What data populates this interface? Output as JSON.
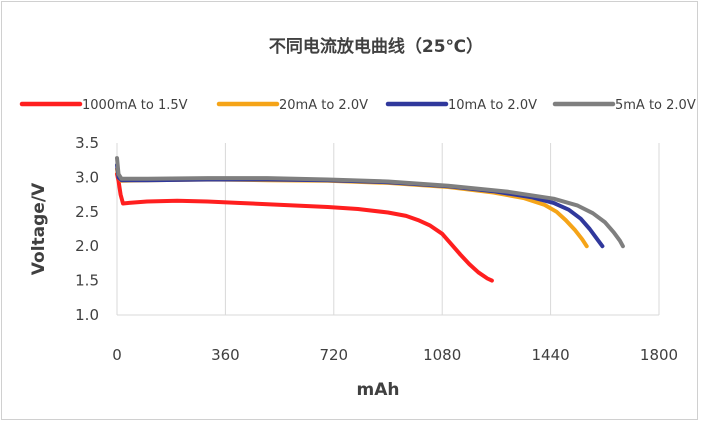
{
  "chart_data": {
    "type": "line",
    "title": "不同电流放电曲线（25℃）",
    "xlabel": "mAh",
    "ylabel": "Voltage/V",
    "xlim": [
      0,
      1800
    ],
    "ylim": [
      1.0,
      3.5
    ],
    "xticks": [
      "0",
      "360",
      "720",
      "1080",
      "1440",
      "1800"
    ],
    "yticks": [
      "1.0",
      "1.5",
      "2.0",
      "2.5",
      "3.0",
      "3.5"
    ],
    "grid": "vertical",
    "legend_position": "top",
    "series": [
      {
        "name": "1000mA to 1.5V",
        "color": "#ff1f1f",
        "points": [
          [
            0,
            3.05
          ],
          [
            5,
            2.95
          ],
          [
            12,
            2.75
          ],
          [
            20,
            2.62
          ],
          [
            40,
            2.63
          ],
          [
            100,
            2.65
          ],
          [
            200,
            2.66
          ],
          [
            300,
            2.65
          ],
          [
            400,
            2.63
          ],
          [
            500,
            2.61
          ],
          [
            600,
            2.59
          ],
          [
            700,
            2.57
          ],
          [
            800,
            2.54
          ],
          [
            900,
            2.49
          ],
          [
            960,
            2.44
          ],
          [
            1000,
            2.38
          ],
          [
            1040,
            2.3
          ],
          [
            1080,
            2.18
          ],
          [
            1110,
            2.03
          ],
          [
            1140,
            1.88
          ],
          [
            1170,
            1.74
          ],
          [
            1200,
            1.62
          ],
          [
            1230,
            1.53
          ],
          [
            1245,
            1.5
          ]
        ]
      },
      {
        "name": "20mA to 2.0V",
        "color": "#f5a418",
        "points": [
          [
            0,
            3.12
          ],
          [
            5,
            3.0
          ],
          [
            15,
            2.95
          ],
          [
            100,
            2.96
          ],
          [
            300,
            2.97
          ],
          [
            500,
            2.96
          ],
          [
            700,
            2.95
          ],
          [
            900,
            2.92
          ],
          [
            1100,
            2.86
          ],
          [
            1250,
            2.78
          ],
          [
            1350,
            2.7
          ],
          [
            1420,
            2.6
          ],
          [
            1460,
            2.5
          ],
          [
            1490,
            2.38
          ],
          [
            1520,
            2.24
          ],
          [
            1545,
            2.1
          ],
          [
            1560,
            2.0
          ]
        ]
      },
      {
        "name": "10mA to 2.0V",
        "color": "#30389c",
        "points": [
          [
            0,
            3.18
          ],
          [
            5,
            3.0
          ],
          [
            15,
            2.96
          ],
          [
            100,
            2.96
          ],
          [
            300,
            2.97
          ],
          [
            500,
            2.97
          ],
          [
            700,
            2.96
          ],
          [
            900,
            2.93
          ],
          [
            1100,
            2.87
          ],
          [
            1250,
            2.8
          ],
          [
            1380,
            2.71
          ],
          [
            1450,
            2.63
          ],
          [
            1500,
            2.53
          ],
          [
            1540,
            2.4
          ],
          [
            1570,
            2.25
          ],
          [
            1595,
            2.1
          ],
          [
            1612,
            2.0
          ]
        ]
      },
      {
        "name": "5mA to 2.0V",
        "color": "#7f7f7f",
        "points": [
          [
            0,
            3.28
          ],
          [
            5,
            3.05
          ],
          [
            15,
            2.98
          ],
          [
            100,
            2.98
          ],
          [
            300,
            2.99
          ],
          [
            500,
            2.99
          ],
          [
            700,
            2.97
          ],
          [
            900,
            2.94
          ],
          [
            1100,
            2.88
          ],
          [
            1300,
            2.79
          ],
          [
            1450,
            2.69
          ],
          [
            1530,
            2.59
          ],
          [
            1580,
            2.48
          ],
          [
            1620,
            2.35
          ],
          [
            1650,
            2.2
          ],
          [
            1670,
            2.08
          ],
          [
            1680,
            2.0
          ]
        ]
      }
    ]
  }
}
